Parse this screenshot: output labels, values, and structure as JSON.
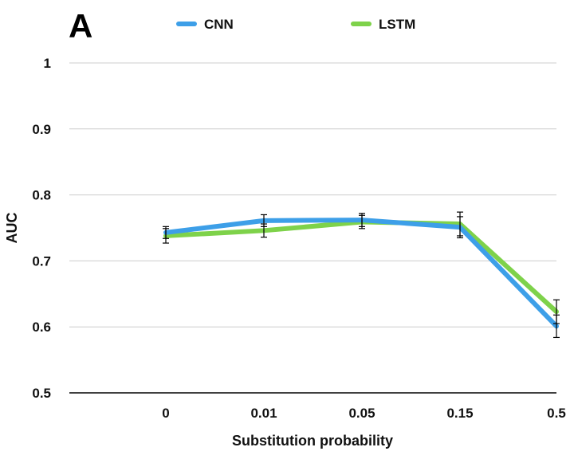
{
  "panel_label": "A",
  "chart_data": {
    "type": "line",
    "title": "",
    "xlabel": "Substitution probability",
    "ylabel": "AUC",
    "categories": [
      "0",
      "0.01",
      "0.05",
      "0.15",
      "0.5"
    ],
    "ylim": [
      0.5,
      1
    ],
    "yticks": [
      "0.5",
      "0.6",
      "0.7",
      "0.8",
      "0.9",
      "1"
    ],
    "grid": true,
    "legend_position": "top",
    "series": [
      {
        "name": "CNN",
        "color": "#3d9fe8",
        "values": [
          0.743,
          0.761,
          0.762,
          0.751,
          0.601
        ],
        "errors": [
          0.009,
          0.009,
          0.01,
          0.016,
          0.017
        ]
      },
      {
        "name": "LSTM",
        "color": "#7ed24a",
        "values": [
          0.738,
          0.746,
          0.759,
          0.756,
          0.623
        ],
        "errors": [
          0.011,
          0.01,
          0.01,
          0.018,
          0.018
        ]
      }
    ]
  }
}
